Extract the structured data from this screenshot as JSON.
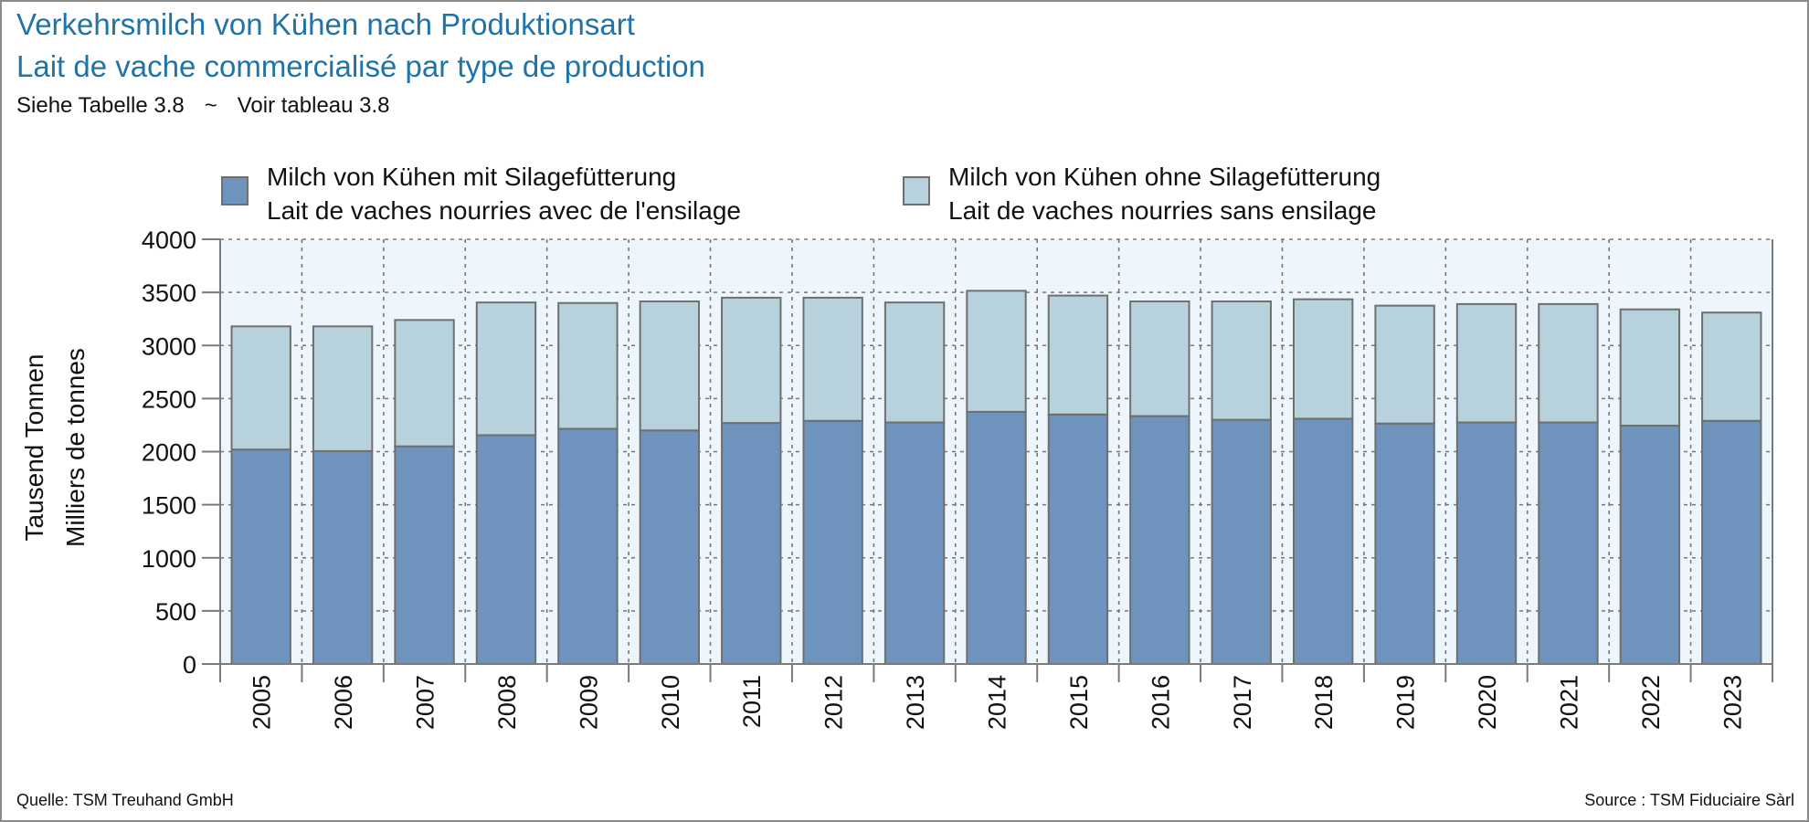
{
  "header": {
    "title_de": "Verkehrsmilch von Kühen nach Produktionsart",
    "title_fr": "Lait de vache commercialisé par type de production",
    "ref_de": "Siehe Tabelle 3.8",
    "ref_sep": "~",
    "ref_fr": "Voir tableau 3.8"
  },
  "footer": {
    "source_de": "Quelle: TSM Treuhand GmbH",
    "source_fr": "Source : TSM Fiduciaire Sàrl"
  },
  "colors": {
    "silage": "#6e93bc",
    "no_silage": "#b7d1dd",
    "plot_bg": "#edf6fc",
    "bar_border": "#6f6f6f",
    "title": "#1f73a8"
  },
  "chart_data": {
    "type": "bar",
    "stacked": true,
    "categories": [
      "2005",
      "2006",
      "2007",
      "2008",
      "2009",
      "2010",
      "2011",
      "2012",
      "2013",
      "2014",
      "2015",
      "2016",
      "2017",
      "2018",
      "2019",
      "2020",
      "2021",
      "2022",
      "2023"
    ],
    "series": [
      {
        "name_de": "Milch von Kühen mit Silagefütterung",
        "name_fr": "Lait de vaches nourries avec de l'ensilage",
        "color": "#6e93bc",
        "values": [
          2020,
          2005,
          2050,
          2155,
          2215,
          2200,
          2270,
          2290,
          2275,
          2375,
          2350,
          2335,
          2300,
          2310,
          2265,
          2275,
          2275,
          2245,
          2290
        ]
      },
      {
        "name_de": "Milch von Kühen ohne Silagefütterung",
        "name_fr": "Lait de vaches nourries sans ensilage",
        "color": "#b7d1dd",
        "values": [
          1160,
          1175,
          1190,
          1250,
          1185,
          1215,
          1180,
          1160,
          1130,
          1140,
          1120,
          1080,
          1115,
          1125,
          1110,
          1115,
          1115,
          1095,
          1020
        ]
      }
    ],
    "ylabel_de": "Tausend Tonnen",
    "ylabel_fr": "Milliers de tonnes",
    "xlabel": "",
    "ylim": [
      0,
      4000
    ],
    "yticks": [
      0,
      500,
      1000,
      1500,
      2000,
      2500,
      3000,
      3500,
      4000
    ],
    "grid": true,
    "legend_position": "top"
  }
}
